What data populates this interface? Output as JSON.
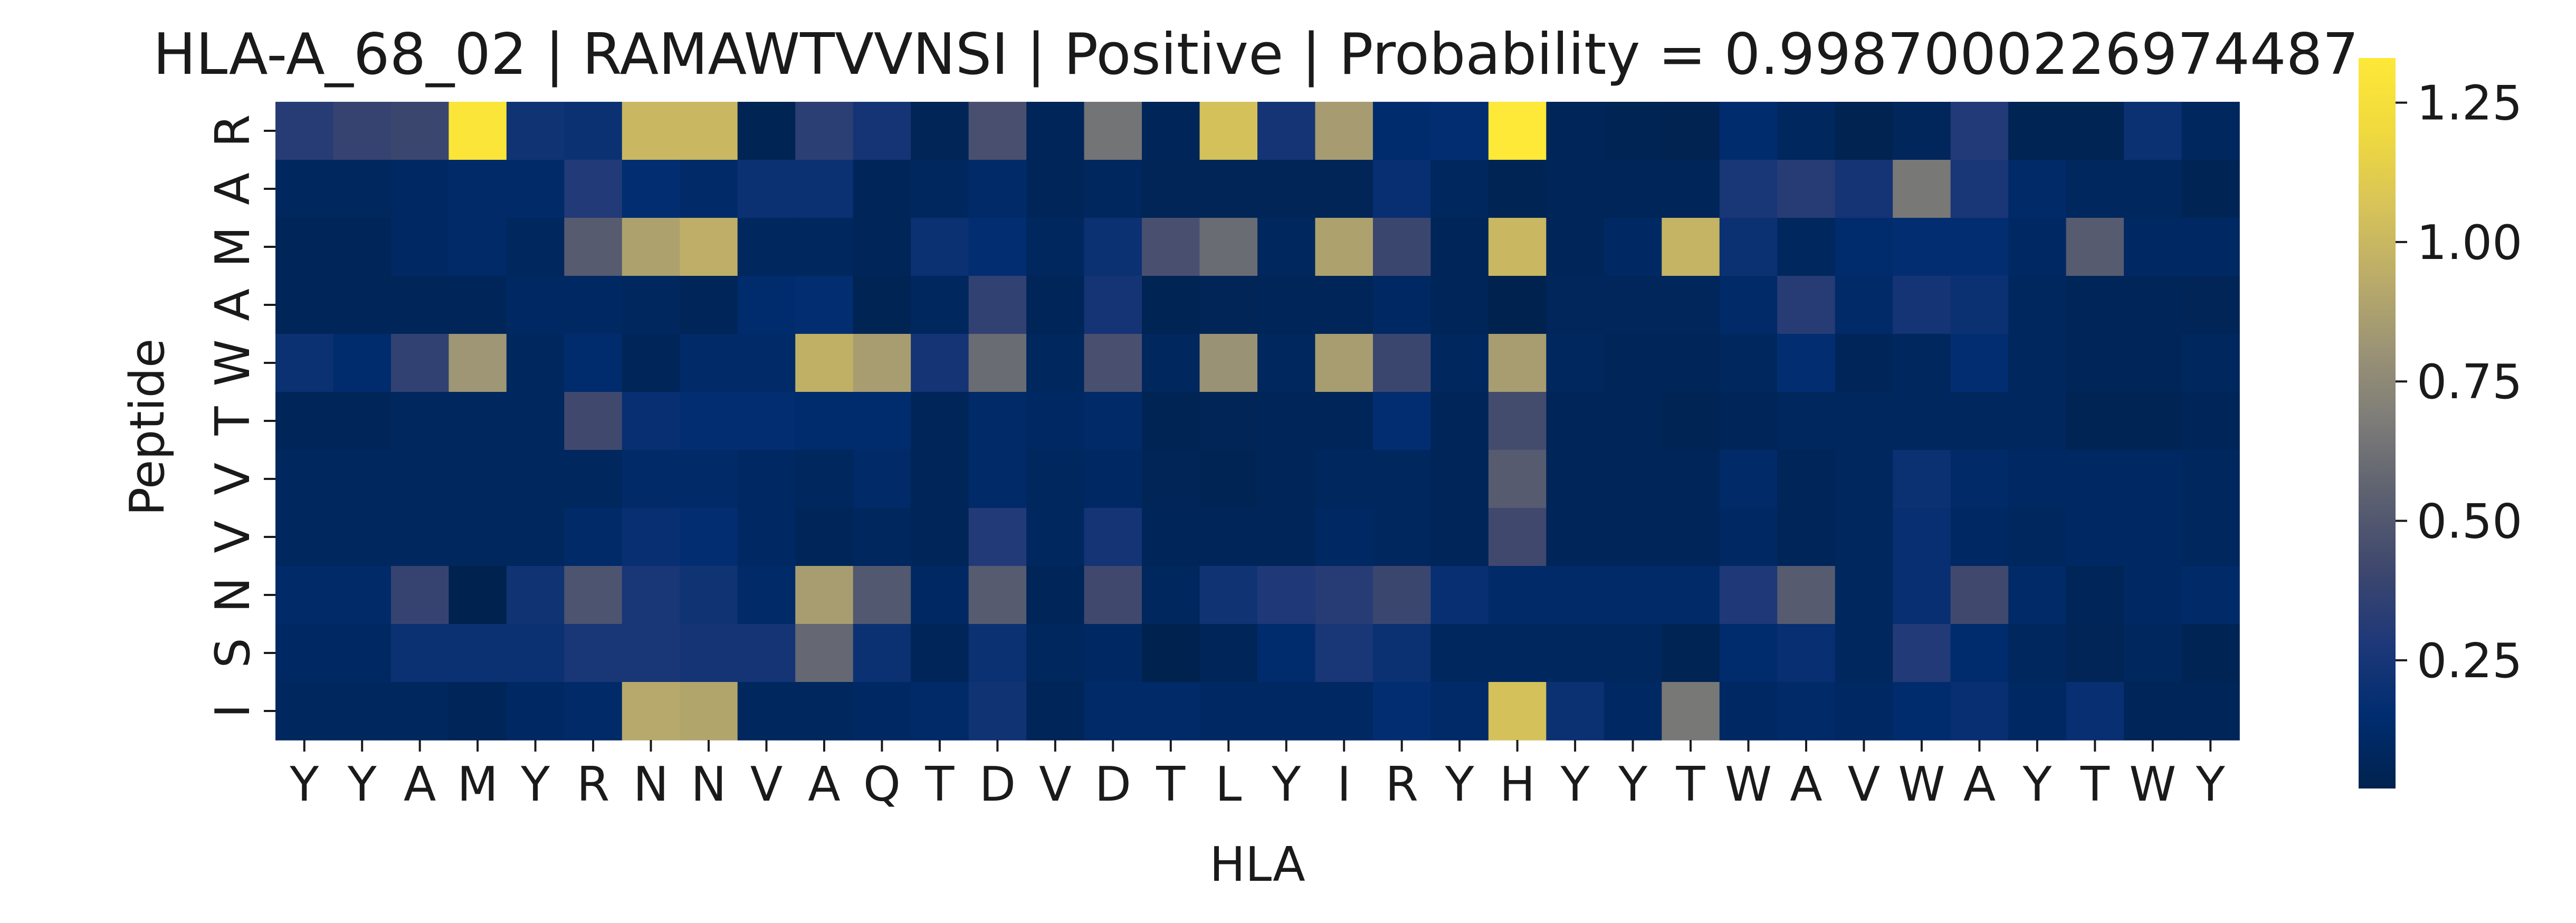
{
  "chart_data": {
    "type": "heatmap",
    "title": "HLA-A_68_02 | RAMAWTVVNSI | Positive | Probability = 0.9987000226974487",
    "xlabel": "HLA",
    "ylabel": "Peptide",
    "x_categories": [
      "Y",
      "Y",
      "A",
      "M",
      "Y",
      "R",
      "N",
      "N",
      "V",
      "A",
      "Q",
      "T",
      "D",
      "V",
      "D",
      "T",
      "L",
      "Y",
      "I",
      "R",
      "Y",
      "H",
      "Y",
      "Y",
      "T",
      "W",
      "A",
      "V",
      "W",
      "A",
      "Y",
      "T",
      "W",
      "Y"
    ],
    "y_categories": [
      "R",
      "A",
      "M",
      "A",
      "W",
      "T",
      "V",
      "V",
      "N",
      "S",
      "I"
    ],
    "values": [
      [
        0.32,
        0.38,
        0.4,
        1.3,
        0.22,
        0.2,
        1.0,
        1.0,
        0.04,
        0.34,
        0.24,
        0.05,
        0.46,
        0.06,
        0.64,
        0.06,
        1.05,
        0.24,
        0.85,
        0.14,
        0.16,
        1.33,
        0.06,
        0.04,
        0.03,
        0.14,
        0.08,
        0.03,
        0.07,
        0.3,
        0.04,
        0.04,
        0.2,
        0.08
      ],
      [
        0.08,
        0.08,
        0.1,
        0.12,
        0.12,
        0.3,
        0.16,
        0.12,
        0.2,
        0.2,
        0.06,
        0.08,
        0.12,
        0.06,
        0.08,
        0.05,
        0.05,
        0.05,
        0.05,
        0.18,
        0.08,
        0.04,
        0.06,
        0.06,
        0.06,
        0.26,
        0.32,
        0.24,
        0.66,
        0.26,
        0.12,
        0.08,
        0.08,
        0.04
      ],
      [
        0.06,
        0.06,
        0.1,
        0.12,
        0.08,
        0.52,
        0.88,
        0.95,
        0.08,
        0.08,
        0.06,
        0.2,
        0.16,
        0.08,
        0.2,
        0.46,
        0.6,
        0.08,
        0.88,
        0.4,
        0.06,
        1.0,
        0.06,
        0.1,
        0.98,
        0.2,
        0.08,
        0.14,
        0.16,
        0.16,
        0.1,
        0.52,
        0.1,
        0.1
      ],
      [
        0.06,
        0.06,
        0.06,
        0.06,
        0.1,
        0.1,
        0.08,
        0.06,
        0.14,
        0.16,
        0.04,
        0.08,
        0.36,
        0.06,
        0.24,
        0.04,
        0.05,
        0.06,
        0.06,
        0.1,
        0.06,
        0.02,
        0.07,
        0.07,
        0.07,
        0.12,
        0.32,
        0.12,
        0.24,
        0.2,
        0.08,
        0.06,
        0.06,
        0.05
      ],
      [
        0.2,
        0.14,
        0.36,
        0.82,
        0.08,
        0.14,
        0.06,
        0.12,
        0.12,
        0.96,
        0.86,
        0.24,
        0.6,
        0.08,
        0.46,
        0.08,
        0.8,
        0.08,
        0.86,
        0.4,
        0.08,
        0.86,
        0.08,
        0.06,
        0.06,
        0.08,
        0.16,
        0.06,
        0.08,
        0.16,
        0.08,
        0.06,
        0.06,
        0.08
      ],
      [
        0.06,
        0.06,
        0.08,
        0.08,
        0.08,
        0.42,
        0.18,
        0.16,
        0.16,
        0.14,
        0.14,
        0.06,
        0.12,
        0.1,
        0.12,
        0.04,
        0.05,
        0.06,
        0.06,
        0.16,
        0.06,
        0.44,
        0.06,
        0.06,
        0.04,
        0.06,
        0.08,
        0.08,
        0.08,
        0.08,
        0.08,
        0.04,
        0.04,
        0.06
      ],
      [
        0.08,
        0.08,
        0.08,
        0.08,
        0.08,
        0.08,
        0.12,
        0.12,
        0.1,
        0.08,
        0.12,
        0.06,
        0.12,
        0.08,
        0.1,
        0.05,
        0.04,
        0.06,
        0.08,
        0.08,
        0.06,
        0.52,
        0.06,
        0.06,
        0.06,
        0.12,
        0.06,
        0.08,
        0.2,
        0.12,
        0.1,
        0.1,
        0.1,
        0.08
      ],
      [
        0.08,
        0.08,
        0.08,
        0.08,
        0.08,
        0.12,
        0.18,
        0.16,
        0.1,
        0.06,
        0.08,
        0.06,
        0.3,
        0.08,
        0.24,
        0.06,
        0.06,
        0.06,
        0.1,
        0.08,
        0.06,
        0.42,
        0.06,
        0.06,
        0.06,
        0.1,
        0.06,
        0.08,
        0.18,
        0.1,
        0.08,
        0.1,
        0.1,
        0.08
      ],
      [
        0.12,
        0.12,
        0.38,
        0.02,
        0.22,
        0.48,
        0.26,
        0.22,
        0.12,
        0.86,
        0.5,
        0.1,
        0.52,
        0.06,
        0.42,
        0.08,
        0.22,
        0.28,
        0.32,
        0.4,
        0.18,
        0.12,
        0.12,
        0.12,
        0.12,
        0.28,
        0.52,
        0.08,
        0.18,
        0.42,
        0.12,
        0.06,
        0.1,
        0.12
      ],
      [
        0.1,
        0.1,
        0.2,
        0.2,
        0.2,
        0.26,
        0.26,
        0.24,
        0.24,
        0.58,
        0.2,
        0.06,
        0.2,
        0.08,
        0.1,
        0.02,
        0.06,
        0.14,
        0.26,
        0.2,
        0.08,
        0.08,
        0.08,
        0.08,
        0.04,
        0.14,
        0.18,
        0.08,
        0.3,
        0.14,
        0.08,
        0.05,
        0.08,
        0.04
      ],
      [
        0.08,
        0.08,
        0.08,
        0.06,
        0.1,
        0.12,
        0.92,
        0.9,
        0.08,
        0.08,
        0.1,
        0.12,
        0.22,
        0.06,
        0.12,
        0.12,
        0.1,
        0.1,
        0.1,
        0.16,
        0.12,
        1.05,
        0.2,
        0.1,
        0.66,
        0.1,
        0.12,
        0.1,
        0.14,
        0.18,
        0.1,
        0.18,
        0.06,
        0.06
      ]
    ],
    "vmin": 0.02,
    "vmax": 1.33,
    "colorbar_ticks": [
      0.25,
      0.5,
      0.75,
      1.0,
      1.25
    ],
    "colorbar_tick_labels": [
      "0.25",
      "0.50",
      "0.75",
      "1.00",
      "1.25"
    ],
    "colormap": "cividis",
    "grid": false,
    "legend": "colorbar-right"
  }
}
